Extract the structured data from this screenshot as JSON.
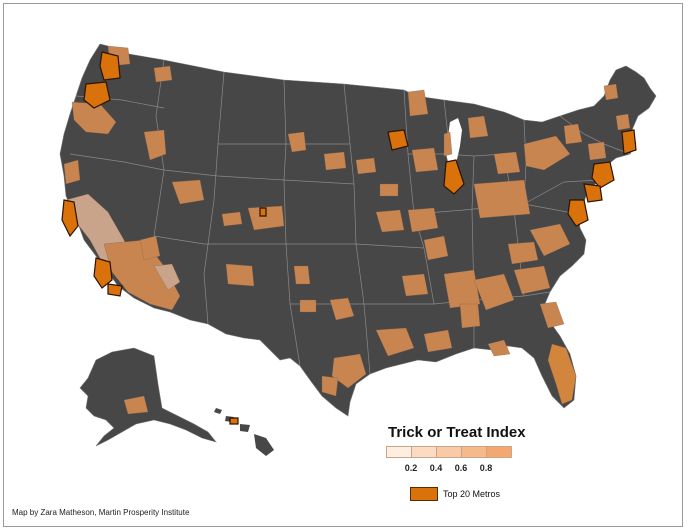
{
  "legend": {
    "title": "Trick or Treat Index",
    "ticks": [
      "0.2",
      "0.4",
      "0.6",
      "0.8"
    ],
    "ramp_colors": [
      "#fdeee0",
      "#fbdcc3",
      "#f8cba6",
      "#f5b98a",
      "#f2a86e"
    ],
    "top_label": "Top 20 Metros",
    "top_color": "#d9720b"
  },
  "credit": "Map by Zara Matheson, Martin Prosperity Institute",
  "colors": {
    "land": "#474747",
    "border": "#8a8a8a",
    "tan_light": "#c9a48a",
    "tan_mid": "#c98550",
    "tan_orange": "#d2853c",
    "top20": "#d9720b"
  }
}
